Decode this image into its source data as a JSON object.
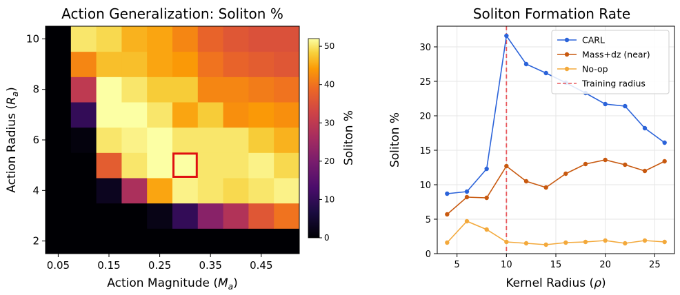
{
  "chart_data": [
    {
      "type": "heatmap",
      "title": "Action Generalization: Soliton %",
      "xlabel": "Action Magnitude (M_a)",
      "ylabel": "Action Radius (R_a)",
      "x_tick_labels": [
        "0.05",
        "0.15",
        "0.25",
        "0.35",
        "0.45"
      ],
      "y_tick_labels": [
        "2",
        "4",
        "6",
        "8",
        "10"
      ],
      "x": [
        0.05,
        0.1,
        0.15,
        0.2,
        0.25,
        0.3,
        0.35,
        0.4,
        0.45,
        0.5
      ],
      "y": [
        2,
        3,
        4,
        5,
        6,
        7,
        8,
        9,
        10
      ],
      "values": [
        [
          0,
          0,
          0,
          0,
          0,
          0,
          0,
          0,
          0,
          0
        ],
        [
          0,
          0,
          0,
          0,
          2,
          10,
          22,
          28,
          36,
          40
        ],
        [
          0,
          0,
          3,
          27,
          45,
          51,
          50,
          49,
          50,
          51
        ],
        [
          0,
          0,
          37,
          50,
          52,
          53,
          50,
          50,
          51,
          49
        ],
        [
          0,
          1,
          50,
          51,
          52,
          50,
          50,
          50,
          48,
          46
        ],
        [
          0,
          10,
          52,
          53,
          50,
          45,
          48,
          43,
          44,
          43
        ],
        [
          0,
          30,
          53,
          50,
          48,
          48,
          42,
          42,
          41,
          40
        ],
        [
          0,
          42,
          47,
          47,
          45,
          44,
          40,
          38,
          37,
          36
        ],
        [
          0,
          50,
          49,
          46,
          45,
          42,
          38,
          36,
          35,
          35
        ]
      ],
      "highlight": {
        "x": 0.3,
        "y": 5
      },
      "colorbar": {
        "label": "Soliton %",
        "range": [
          0,
          52
        ],
        "ticks": [
          0,
          10,
          20,
          30,
          40,
          50
        ],
        "colormap": "inferno"
      }
    },
    {
      "type": "line",
      "title": "Soliton Formation Rate",
      "xlabel": "Kernel Radius (ρ)",
      "ylabel": "Soliton %",
      "xlim": [
        3.0,
        27.0
      ],
      "ylim": [
        0,
        33
      ],
      "x_ticks": [
        5,
        10,
        15,
        20,
        25
      ],
      "y_ticks": [
        0,
        5,
        10,
        15,
        20,
        25,
        30
      ],
      "grid": true,
      "legend": "top-right",
      "x": [
        4,
        6,
        8,
        10,
        12,
        14,
        16,
        18,
        20,
        22,
        24,
        26
      ],
      "series": [
        {
          "name": "CARL",
          "color": "#2b63d9",
          "values": [
            8.7,
            9.0,
            12.3,
            31.6,
            27.5,
            26.2,
            24.8,
            23.3,
            21.7,
            21.4,
            18.2,
            16.1
          ]
        },
        {
          "name": "Mass+dz (near)",
          "color": "#c8590f",
          "values": [
            5.7,
            8.2,
            8.1,
            12.7,
            10.5,
            9.6,
            11.6,
            13.0,
            13.6,
            12.9,
            12.0,
            13.4
          ]
        },
        {
          "name": "No-op",
          "color": "#f3a93b",
          "values": [
            1.6,
            4.7,
            3.5,
            1.7,
            1.5,
            1.3,
            1.6,
            1.7,
            1.9,
            1.5,
            1.9,
            1.7
          ]
        }
      ],
      "reference_line": {
        "x": 10,
        "label": "Training radius",
        "color": "#e8585d"
      }
    }
  ]
}
